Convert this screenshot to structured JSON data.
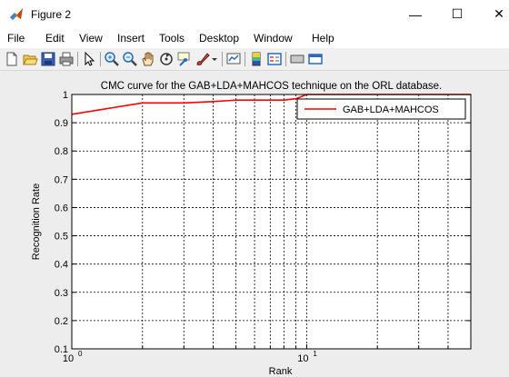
{
  "window": {
    "title": "Figure 2",
    "minimize_glyph": "—",
    "maximize_glyph": "☐",
    "close_glyph": "✕"
  },
  "menu": {
    "items": [
      {
        "label": "File"
      },
      {
        "label": "Edit"
      },
      {
        "label": "View"
      },
      {
        "label": "Insert"
      },
      {
        "label": "Tools"
      },
      {
        "label": "Desktop"
      },
      {
        "label": "Window"
      },
      {
        "label": "Help"
      }
    ]
  },
  "toolbar": {
    "icons": [
      "new-figure-icon",
      "open-file-icon",
      "save-figure-icon",
      "print-figure-icon",
      "edit-plot-icon",
      "zoom-in-icon",
      "zoom-out-icon",
      "pan-icon",
      "rotate-3d-icon",
      "data-cursor-icon",
      "brush-icon",
      "link-plot-icon",
      "insert-colorbar-icon",
      "insert-legend-icon",
      "hide-plot-tools-icon",
      "show-plot-tools-icon"
    ]
  },
  "chart_data": {
    "type": "line",
    "title": "CMC curve for the GAB+LDA+MAHCOS technique on the ORL database.",
    "xlabel": "Rank",
    "ylabel": "Recognition Rate",
    "xscale": "log",
    "xlim": [
      1,
      50
    ],
    "ylim": [
      0.1,
      1
    ],
    "x_tick_labels": [
      {
        "base": "10",
        "exp": "0",
        "value": 1
      },
      {
        "base": "10",
        "exp": "1",
        "value": 10
      }
    ],
    "y_tick_labels": [
      "0.1",
      "0.2",
      "0.3",
      "0.4",
      "0.5",
      "0.6",
      "0.7",
      "0.8",
      "0.9",
      "1"
    ],
    "y_ticks": [
      0.1,
      0.2,
      0.3,
      0.4,
      0.5,
      0.6,
      0.7,
      0.8,
      0.9,
      1.0
    ],
    "grid": true,
    "legend_position": "top-right",
    "series": [
      {
        "name": "GAB+LDA+MAHCOS",
        "color": "#ff0000",
        "x": [
          1,
          2,
          3,
          4,
          5,
          6,
          7,
          8,
          9,
          10,
          20,
          30,
          40,
          50
        ],
        "y": [
          0.93,
          0.97,
          0.97,
          0.975,
          0.98,
          0.98,
          0.98,
          0.98,
          0.985,
          1.0,
          1.0,
          1.0,
          1.0,
          1.0
        ]
      }
    ]
  }
}
